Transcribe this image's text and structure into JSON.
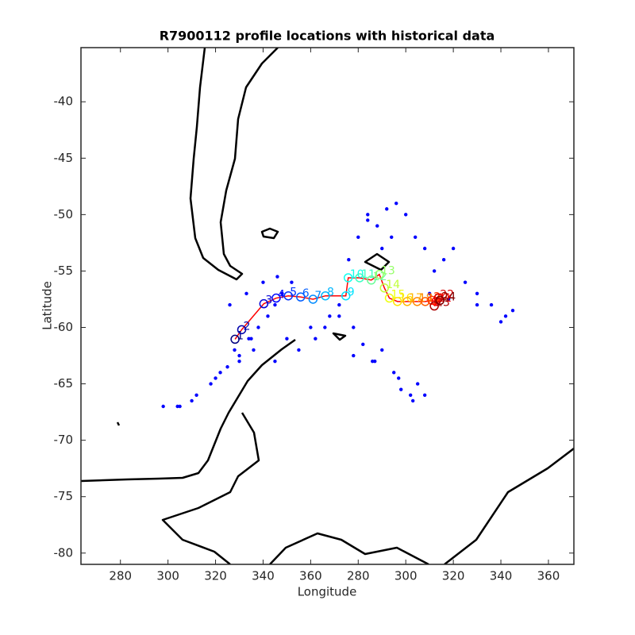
{
  "chart_data": {
    "type": "scatter",
    "title": "R7900112 profile locations with historical data",
    "xlabel": "Longitude",
    "ylabel": "Latitude",
    "xlim": [
      263.4,
      470.7
    ],
    "ylim": [
      -81,
      -35.2
    ],
    "xticks": [
      280,
      300,
      320,
      340,
      360,
      {
        "value": 380,
        "label": "280"
      },
      {
        "value": 400,
        "label": "300"
      },
      {
        "value": 420,
        "label": "320"
      },
      {
        "value": 440,
        "label": "340"
      },
      {
        "value": 460,
        "label": "360"
      }
    ],
    "yticks": [
      -40,
      -45,
      -50,
      -55,
      -60,
      -65,
      -70,
      -75,
      -80
    ],
    "series": [
      {
        "name": "historical",
        "color": "#0000ff",
        "x": [
          298,
          304,
          310,
          318,
          325,
          330,
          335,
          338,
          342,
          345,
          348,
          352,
          326,
          333,
          340,
          346,
          350,
          322,
          330,
          336,
          345,
          355,
          360,
          368,
          372,
          376,
          380,
          384,
          388,
          392,
          396,
          400,
          404,
          408,
          412,
          416,
          420,
          425,
          430,
          436,
          440,
          445,
          378,
          382,
          386,
          390,
          395,
          398,
          402,
          405,
          372,
          366,
          362,
          390,
          394,
          384,
          410,
          418,
          430,
          442,
          305,
          312,
          320,
          328,
          334,
          378,
          387,
          397,
          403,
          408
        ],
        "y": [
          -67,
          -67,
          -66.5,
          -65,
          -63.5,
          -62.5,
          -61,
          -60,
          -59,
          -58,
          -57,
          -56,
          -58,
          -57,
          -56,
          -55.5,
          -61,
          -64,
          -63,
          -62,
          -63,
          -62,
          -60,
          -59,
          -58,
          -54,
          -52,
          -50.5,
          -51,
          -49.5,
          -49,
          -50,
          -52,
          -53,
          -55,
          -54,
          -53,
          -56,
          -57,
          -58,
          -59.5,
          -58.5,
          -60,
          -61.5,
          -63,
          -62,
          -64,
          -65.5,
          -66,
          -65,
          -59,
          -60,
          -61,
          -53,
          -52,
          -50,
          -57,
          -57.5,
          -58,
          -59,
          -67,
          -66,
          -64.5,
          -62,
          -61,
          -62.5,
          -63,
          -64.5,
          -66.5,
          -66
        ],
        "size": 2.2
      },
      {
        "name": "profiles",
        "color": "#ff0000",
        "x": [
          328.2,
          331.0,
          340.3,
          345.5,
          350.6,
          355.8,
          361.0,
          366.2,
          374.8,
          375.8,
          380.6,
          385.5,
          388.9,
          391.0,
          393.1,
          396.5,
          400.6,
          404.8,
          408.2,
          411.0,
          412.7,
          413.7,
          412.0,
          414.4
        ],
        "y": [
          -61.05,
          -60.2,
          -57.9,
          -57.4,
          -57.2,
          -57.3,
          -57.5,
          -57.2,
          -57.2,
          -55.6,
          -55.6,
          -55.8,
          -55.3,
          -56.5,
          -57.4,
          -57.7,
          -57.7,
          -57.7,
          -57.7,
          -57.6,
          -57.7,
          -57.4,
          -58.1,
          -57.6
        ],
        "labels": [
          1,
          2,
          3,
          4,
          5,
          6,
          7,
          8,
          9,
          10,
          11,
          12,
          13,
          14,
          15,
          16,
          17,
          18,
          19,
          20,
          21,
          22,
          23,
          24
        ]
      }
    ]
  }
}
